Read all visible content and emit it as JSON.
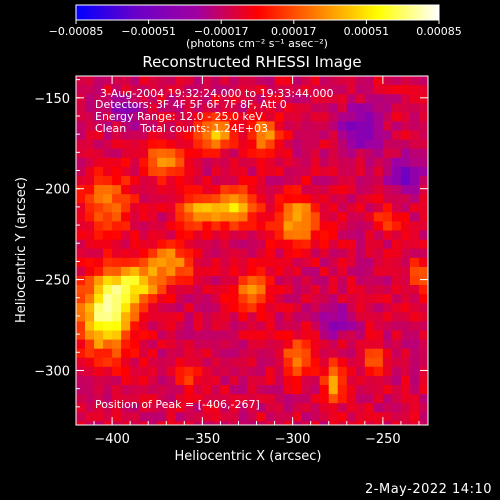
{
  "chart_data": {
    "type": "heatmap",
    "title": "Reconstructed RHESSI Image",
    "xlabel": "Heliocentric X (arcsec)",
    "ylabel": "Heliocentric Y (arcsec)",
    "xlim": [
      -420,
      -225
    ],
    "ylim": [
      -330,
      -138
    ],
    "xticks": [
      -400,
      -350,
      -300,
      -250
    ],
    "yticks": [
      -150,
      -200,
      -250,
      -300
    ],
    "xtick_labels": [
      "−400",
      "−350",
      "−300",
      "−250"
    ],
    "ytick_labels": [
      "−150",
      "−200",
      "−250",
      "−300"
    ],
    "colorbar": {
      "range": [
        -0.00085,
        0.00085
      ],
      "ticks": [
        -0.00085,
        -0.00051,
        -0.00017,
        0.00017,
        0.00051,
        0.00085
      ],
      "tick_labels": [
        "−0.00085",
        "−0.00051",
        "−0.00017",
        "0.00017",
        "0.00051",
        "0.00085"
      ],
      "unit_label": "(photons cm⁻² s⁻¹ asec⁻²)",
      "colormap": [
        "#0000ff",
        "#6a00c8",
        "#a000a0",
        "#ff0000",
        "#ff8000",
        "#ffff00",
        "#ffffff"
      ]
    },
    "annotations": [
      "3-Aug-2004 19:32:24.000 to 19:33:44.000",
      "Detectors: 3F 4F 5F 6F 7F 8F, Att 0",
      "Energy Range: 12.0 - 25.0 keV",
      "Clean    Total counts: 1.24E+03"
    ],
    "peak_label": "Position of Peak = [-406,-267]",
    "peak": [
      -406,
      -267
    ],
    "sources": [
      {
        "x": -406,
        "y": -267,
        "value": 0.00085,
        "sx": 10,
        "sy": 14
      },
      {
        "x": -390,
        "y": -250,
        "value": 0.0006,
        "sx": 10,
        "sy": 8
      },
      {
        "x": -373,
        "y": -182,
        "value": 0.00055,
        "sx": 8,
        "sy": 6
      },
      {
        "x": -345,
        "y": -167,
        "value": 0.00052,
        "sx": 7,
        "sy": 6
      },
      {
        "x": -335,
        "y": -207,
        "value": 0.00058,
        "sx": 8,
        "sy": 7
      },
      {
        "x": -355,
        "y": -210,
        "value": 0.0005,
        "sx": 8,
        "sy": 6
      },
      {
        "x": -318,
        "y": -168,
        "value": 0.00048,
        "sx": 6,
        "sy": 6
      },
      {
        "x": -300,
        "y": -215,
        "value": 0.00052,
        "sx": 9,
        "sy": 9
      },
      {
        "x": -325,
        "y": -255,
        "value": 0.00045,
        "sx": 7,
        "sy": 7
      },
      {
        "x": -370,
        "y": -238,
        "value": 0.00045,
        "sx": 9,
        "sy": 7
      },
      {
        "x": -405,
        "y": -205,
        "value": 0.0004,
        "sx": 9,
        "sy": 12
      },
      {
        "x": -300,
        "y": -290,
        "value": 0.00035,
        "sx": 6,
        "sy": 8
      },
      {
        "x": -280,
        "y": -305,
        "value": 0.00045,
        "sx": 4,
        "sy": 8
      },
      {
        "x": -257,
        "y": -292,
        "value": 0.00042,
        "sx": 4,
        "sy": 5
      },
      {
        "x": -250,
        "y": -215,
        "value": 0.00028,
        "sx": 5,
        "sy": 5
      },
      {
        "x": -232,
        "y": -245,
        "value": 0.0003,
        "sx": 4,
        "sy": 6
      },
      {
        "x": -360,
        "y": -300,
        "value": 0.0003,
        "sx": 5,
        "sy": 5
      },
      {
        "x": -265,
        "y": -165,
        "value": -0.00035,
        "sx": 8,
        "sy": 8
      },
      {
        "x": -240,
        "y": -190,
        "value": -0.0004,
        "sx": 6,
        "sy": 6
      },
      {
        "x": -395,
        "y": -155,
        "value": -0.0003,
        "sx": 6,
        "sy": 5
      },
      {
        "x": -278,
        "y": -270,
        "value": -0.00025,
        "sx": 6,
        "sy": 6
      }
    ]
  },
  "footer": {
    "date": "2-May-2022 14:10"
  }
}
